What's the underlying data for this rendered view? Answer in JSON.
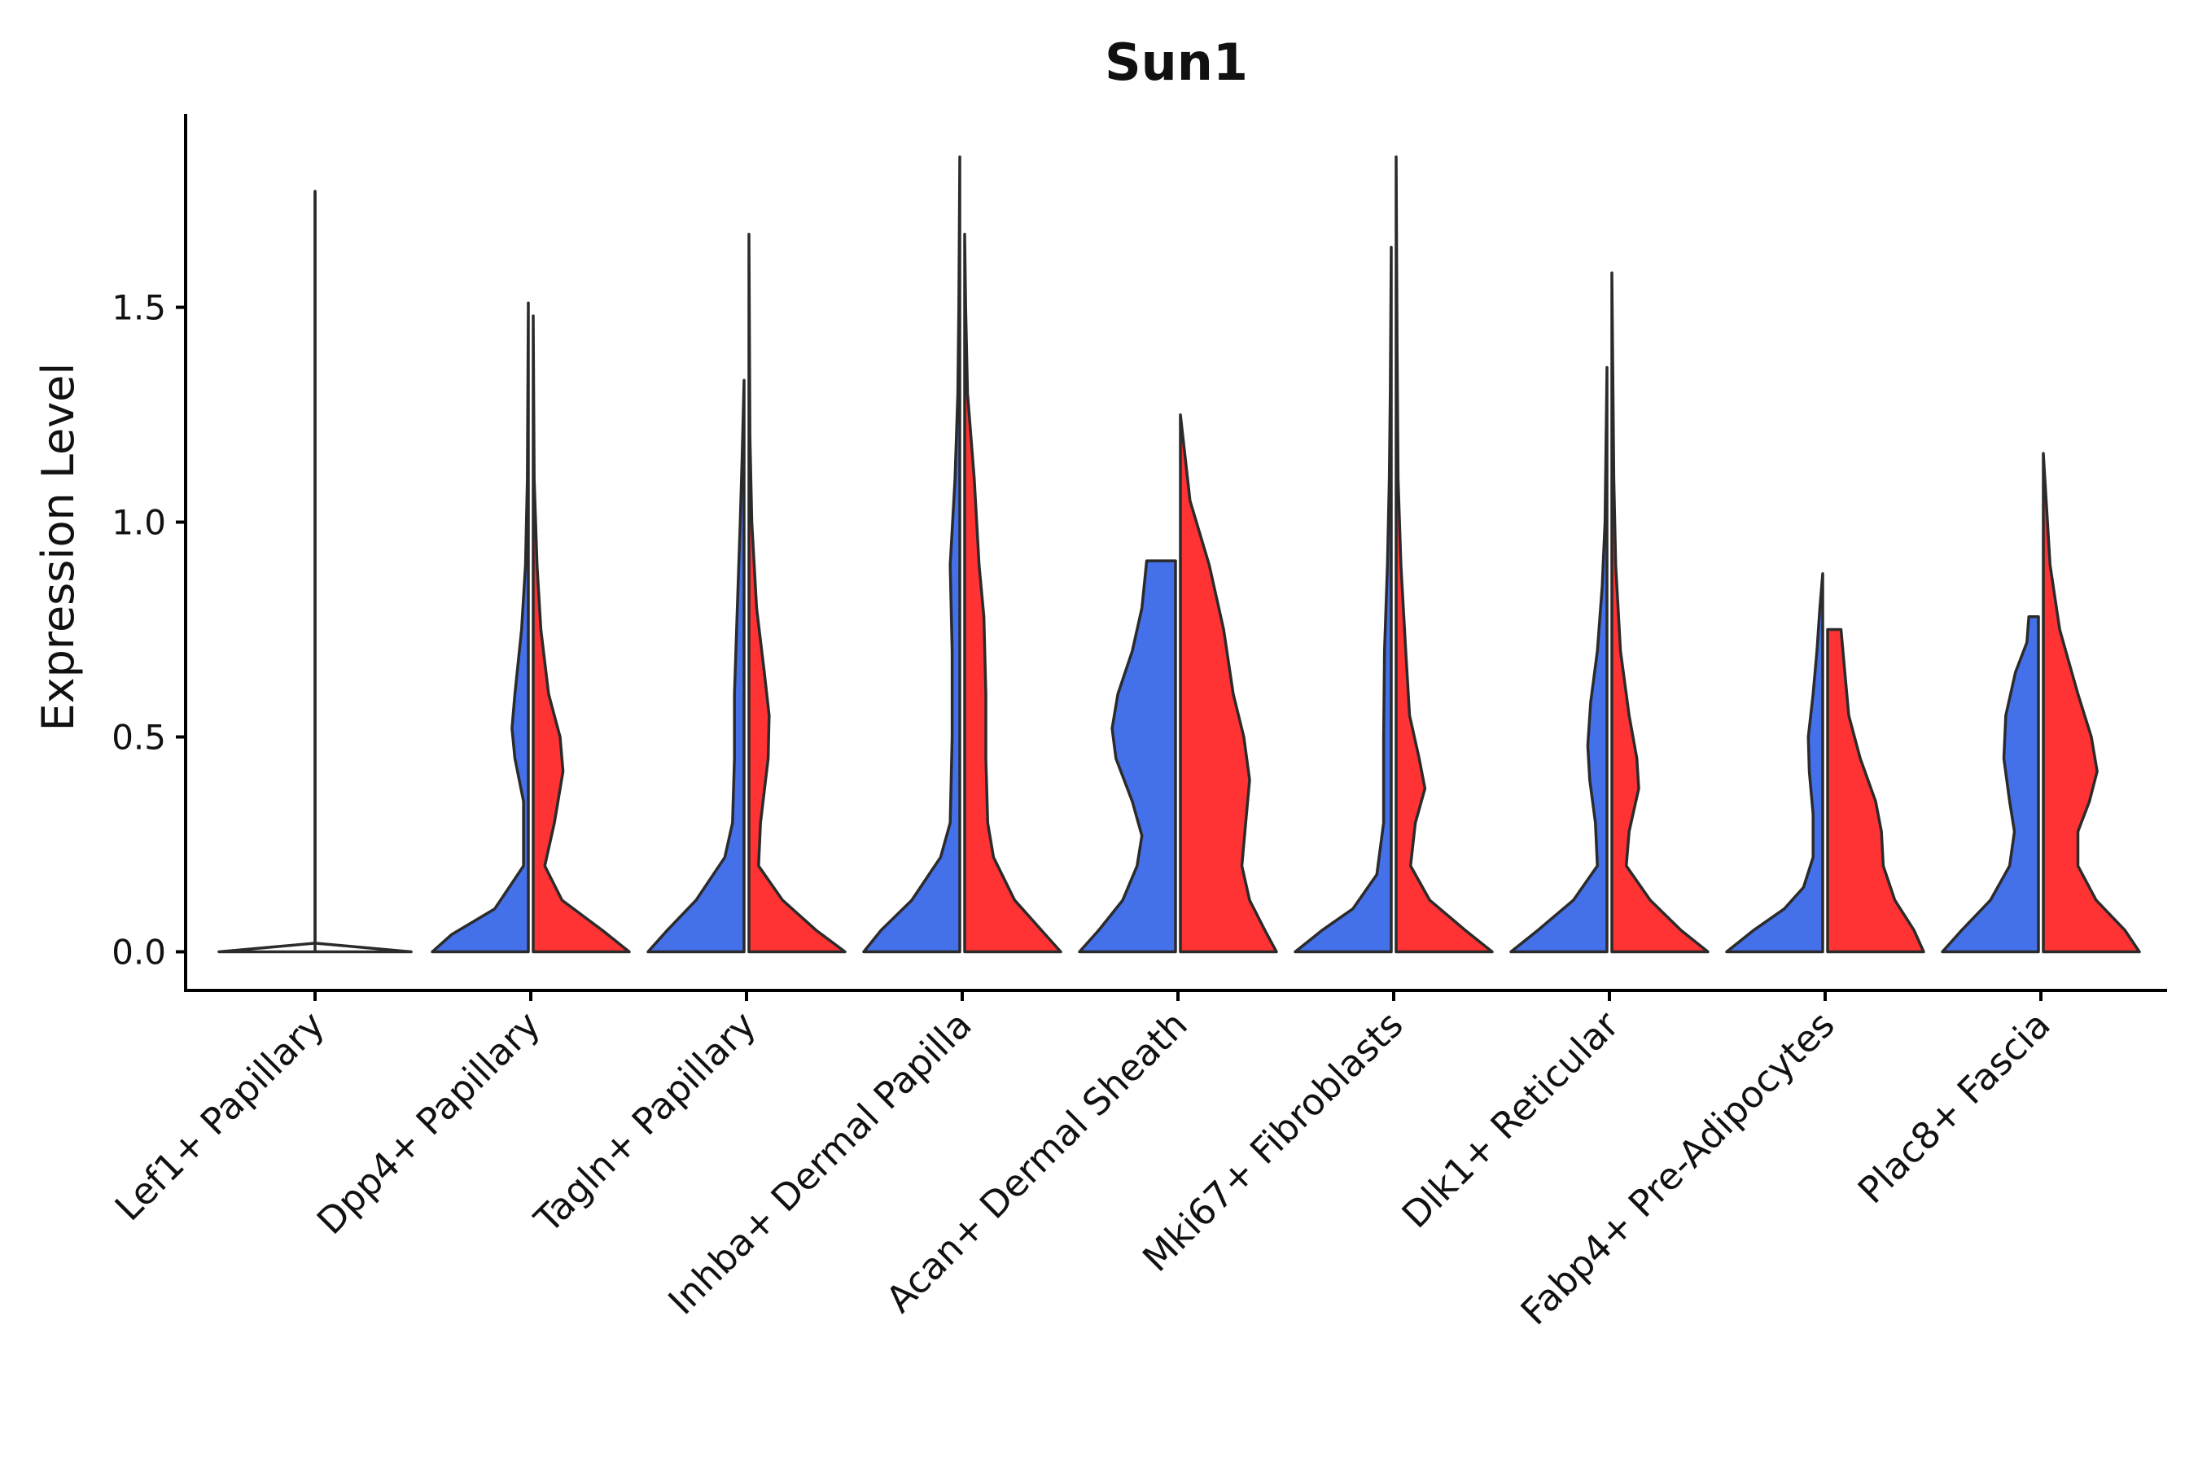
{
  "chart_data": {
    "type": "violin",
    "title": "Sun1",
    "xlabel": "",
    "ylabel": "Expression Level",
    "ylim": [
      -0.09,
      1.95
    ],
    "yticks": [
      0.0,
      0.5,
      1.0,
      1.5
    ],
    "ytick_labels": [
      "0.0",
      "0.5",
      "1.0",
      "1.5"
    ],
    "split": true,
    "series": [
      {
        "name": "group-1",
        "color": "#4470ea"
      },
      {
        "name": "group-2",
        "color": "#ff3333"
      }
    ],
    "categories": [
      "Lef1+ Papillary",
      "Dpp4+ Papillary",
      "Tagln+ Papillary",
      "Inhba+ Dermal Papilla",
      "Acan+ Dermal Sheath",
      "Mki67+ Fibroblasts",
      "Dlk1+ Reticular",
      "Fabp4+ Pre-Adipocytes",
      "Plac8+ Fascia"
    ],
    "violins": [
      {
        "category": "Lef1+ Papillary",
        "single": true,
        "color": "#ffffff",
        "max": 1.77,
        "profile": [
          [
            0.0,
            1.0
          ],
          [
            0.02,
            0.0
          ]
        ]
      },
      {
        "category": "Dpp4+ Papillary",
        "series": "group-1",
        "max": 1.51,
        "profile": [
          [
            0.0,
            1.0
          ],
          [
            0.04,
            0.8
          ],
          [
            0.1,
            0.35
          ],
          [
            0.2,
            0.05
          ],
          [
            0.35,
            0.05
          ],
          [
            0.45,
            0.14
          ],
          [
            0.52,
            0.17
          ],
          [
            0.6,
            0.14
          ],
          [
            0.75,
            0.07
          ],
          [
            0.9,
            0.03
          ],
          [
            1.1,
            0.01
          ],
          [
            1.51,
            0.0
          ]
        ]
      },
      {
        "category": "Dpp4+ Papillary",
        "series": "group-2",
        "max": 1.48,
        "profile": [
          [
            0.0,
            1.0
          ],
          [
            0.05,
            0.72
          ],
          [
            0.12,
            0.3
          ],
          [
            0.2,
            0.12
          ],
          [
            0.3,
            0.22
          ],
          [
            0.42,
            0.31
          ],
          [
            0.5,
            0.28
          ],
          [
            0.6,
            0.16
          ],
          [
            0.75,
            0.08
          ],
          [
            0.9,
            0.04
          ],
          [
            1.1,
            0.01
          ],
          [
            1.48,
            0.0
          ]
        ]
      },
      {
        "category": "Tagln+ Papillary",
        "series": "group-1",
        "max": 1.33,
        "profile": [
          [
            0.0,
            1.0
          ],
          [
            0.05,
            0.8
          ],
          [
            0.12,
            0.5
          ],
          [
            0.22,
            0.2
          ],
          [
            0.3,
            0.12
          ],
          [
            0.45,
            0.1
          ],
          [
            0.6,
            0.1
          ],
          [
            0.8,
            0.07
          ],
          [
            1.0,
            0.04
          ],
          [
            1.15,
            0.02
          ],
          [
            1.33,
            0.0
          ]
        ]
      },
      {
        "category": "Tagln+ Papillary",
        "series": "group-2",
        "max": 1.67,
        "profile": [
          [
            0.0,
            1.0
          ],
          [
            0.05,
            0.7
          ],
          [
            0.12,
            0.35
          ],
          [
            0.2,
            0.1
          ],
          [
            0.3,
            0.12
          ],
          [
            0.45,
            0.2
          ],
          [
            0.55,
            0.21
          ],
          [
            0.65,
            0.16
          ],
          [
            0.8,
            0.08
          ],
          [
            1.0,
            0.03
          ],
          [
            1.2,
            0.01
          ],
          [
            1.67,
            0.0
          ]
        ]
      },
      {
        "category": "Inhba+ Dermal Papilla",
        "series": "group-1",
        "max": 1.85,
        "profile": [
          [
            0.0,
            1.0
          ],
          [
            0.05,
            0.82
          ],
          [
            0.12,
            0.5
          ],
          [
            0.22,
            0.2
          ],
          [
            0.3,
            0.1
          ],
          [
            0.5,
            0.08
          ],
          [
            0.7,
            0.08
          ],
          [
            0.9,
            0.1
          ],
          [
            1.1,
            0.05
          ],
          [
            1.3,
            0.02
          ],
          [
            1.5,
            0.01
          ],
          [
            1.85,
            0.0
          ]
        ]
      },
      {
        "category": "Inhba+ Dermal Papilla",
        "series": "group-2",
        "max": 1.67,
        "profile": [
          [
            0.0,
            1.0
          ],
          [
            0.05,
            0.8
          ],
          [
            0.12,
            0.52
          ],
          [
            0.22,
            0.3
          ],
          [
            0.3,
            0.24
          ],
          [
            0.45,
            0.22
          ],
          [
            0.6,
            0.22
          ],
          [
            0.78,
            0.2
          ],
          [
            0.9,
            0.15
          ],
          [
            1.1,
            0.1
          ],
          [
            1.3,
            0.03
          ],
          [
            1.5,
            0.01
          ],
          [
            1.67,
            0.0
          ]
        ]
      },
      {
        "category": "Acan+ Dermal Sheath",
        "series": "group-1",
        "max": 0.91,
        "profile": [
          [
            0.0,
            1.0
          ],
          [
            0.05,
            0.8
          ],
          [
            0.12,
            0.55
          ],
          [
            0.2,
            0.4
          ],
          [
            0.27,
            0.35
          ],
          [
            0.35,
            0.45
          ],
          [
            0.45,
            0.62
          ],
          [
            0.52,
            0.66
          ],
          [
            0.6,
            0.6
          ],
          [
            0.7,
            0.45
          ],
          [
            0.8,
            0.35
          ],
          [
            0.91,
            0.3
          ]
        ]
      },
      {
        "category": "Acan+ Dermal Sheath",
        "series": "group-2",
        "max": 1.25,
        "profile": [
          [
            0.0,
            1.0
          ],
          [
            0.05,
            0.88
          ],
          [
            0.12,
            0.72
          ],
          [
            0.2,
            0.64
          ],
          [
            0.3,
            0.68
          ],
          [
            0.4,
            0.72
          ],
          [
            0.5,
            0.66
          ],
          [
            0.6,
            0.55
          ],
          [
            0.75,
            0.45
          ],
          [
            0.9,
            0.3
          ],
          [
            1.05,
            0.1
          ],
          [
            1.25,
            0.0
          ]
        ]
      },
      {
        "category": "Mki67+ Fibroblasts",
        "series": "group-1",
        "max": 1.64,
        "profile": [
          [
            0.0,
            1.0
          ],
          [
            0.05,
            0.72
          ],
          [
            0.1,
            0.4
          ],
          [
            0.18,
            0.15
          ],
          [
            0.3,
            0.08
          ],
          [
            0.5,
            0.08
          ],
          [
            0.7,
            0.07
          ],
          [
            0.9,
            0.04
          ],
          [
            1.1,
            0.02
          ],
          [
            1.3,
            0.01
          ],
          [
            1.64,
            0.0
          ]
        ]
      },
      {
        "category": "Mki67+ Fibroblasts",
        "series": "group-2",
        "max": 1.85,
        "profile": [
          [
            0.0,
            1.0
          ],
          [
            0.05,
            0.72
          ],
          [
            0.12,
            0.35
          ],
          [
            0.2,
            0.15
          ],
          [
            0.3,
            0.2
          ],
          [
            0.38,
            0.3
          ],
          [
            0.45,
            0.24
          ],
          [
            0.55,
            0.14
          ],
          [
            0.7,
            0.1
          ],
          [
            0.9,
            0.05
          ],
          [
            1.1,
            0.02
          ],
          [
            1.4,
            0.01
          ],
          [
            1.85,
            0.0
          ]
        ]
      },
      {
        "category": "Dlk1+ Reticular",
        "series": "group-1",
        "max": 1.36,
        "profile": [
          [
            0.0,
            1.0
          ],
          [
            0.05,
            0.72
          ],
          [
            0.12,
            0.35
          ],
          [
            0.2,
            0.1
          ],
          [
            0.3,
            0.12
          ],
          [
            0.4,
            0.18
          ],
          [
            0.48,
            0.2
          ],
          [
            0.58,
            0.17
          ],
          [
            0.7,
            0.1
          ],
          [
            0.85,
            0.05
          ],
          [
            1.0,
            0.02
          ],
          [
            1.36,
            0.0
          ]
        ]
      },
      {
        "category": "Dlk1+ Reticular",
        "series": "group-2",
        "max": 1.58,
        "profile": [
          [
            0.0,
            1.0
          ],
          [
            0.05,
            0.72
          ],
          [
            0.12,
            0.4
          ],
          [
            0.2,
            0.15
          ],
          [
            0.28,
            0.18
          ],
          [
            0.38,
            0.28
          ],
          [
            0.45,
            0.26
          ],
          [
            0.55,
            0.18
          ],
          [
            0.7,
            0.09
          ],
          [
            0.9,
            0.04
          ],
          [
            1.1,
            0.02
          ],
          [
            1.58,
            0.0
          ]
        ]
      },
      {
        "category": "Fabp4+ Pre-Adipocytes",
        "series": "group-1",
        "max": 0.88,
        "profile": [
          [
            0.0,
            1.0
          ],
          [
            0.05,
            0.72
          ],
          [
            0.1,
            0.4
          ],
          [
            0.15,
            0.2
          ],
          [
            0.22,
            0.1
          ],
          [
            0.32,
            0.1
          ],
          [
            0.42,
            0.14
          ],
          [
            0.5,
            0.15
          ],
          [
            0.6,
            0.1
          ],
          [
            0.7,
            0.06
          ],
          [
            0.8,
            0.03
          ],
          [
            0.88,
            0.0
          ]
        ]
      },
      {
        "category": "Fabp4+ Pre-Adipocytes",
        "series": "group-2",
        "max": 0.75,
        "profile": [
          [
            0.0,
            1.0
          ],
          [
            0.05,
            0.9
          ],
          [
            0.12,
            0.7
          ],
          [
            0.2,
            0.58
          ],
          [
            0.28,
            0.56
          ],
          [
            0.35,
            0.5
          ],
          [
            0.45,
            0.34
          ],
          [
            0.55,
            0.22
          ],
          [
            0.65,
            0.18
          ],
          [
            0.75,
            0.14
          ]
        ]
      },
      {
        "category": "Plac8+ Fascia",
        "series": "group-1",
        "max": 0.78,
        "profile": [
          [
            0.0,
            1.0
          ],
          [
            0.05,
            0.8
          ],
          [
            0.12,
            0.5
          ],
          [
            0.2,
            0.3
          ],
          [
            0.28,
            0.25
          ],
          [
            0.35,
            0.3
          ],
          [
            0.45,
            0.36
          ],
          [
            0.55,
            0.34
          ],
          [
            0.65,
            0.24
          ],
          [
            0.72,
            0.12
          ],
          [
            0.78,
            0.1
          ]
        ]
      },
      {
        "category": "Plac8+ Fascia",
        "series": "group-2",
        "max": 1.16,
        "profile": [
          [
            0.0,
            1.0
          ],
          [
            0.05,
            0.85
          ],
          [
            0.12,
            0.55
          ],
          [
            0.2,
            0.36
          ],
          [
            0.28,
            0.36
          ],
          [
            0.35,
            0.48
          ],
          [
            0.42,
            0.56
          ],
          [
            0.5,
            0.5
          ],
          [
            0.6,
            0.36
          ],
          [
            0.75,
            0.17
          ],
          [
            0.9,
            0.07
          ],
          [
            1.16,
            0.0
          ]
        ]
      }
    ]
  }
}
